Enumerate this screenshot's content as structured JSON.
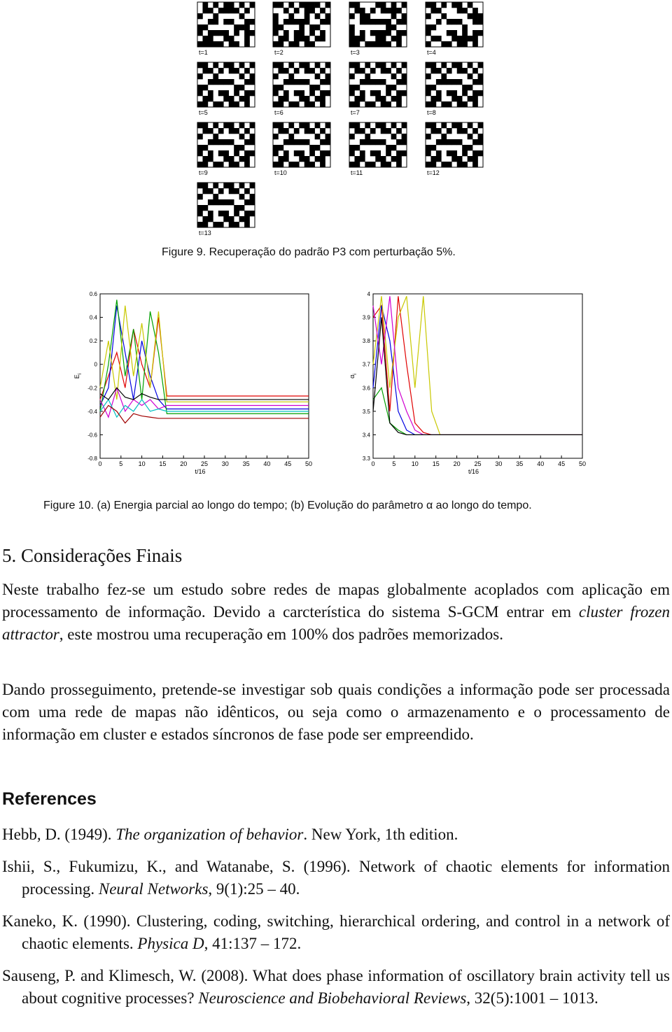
{
  "figure9": {
    "panels": [
      "t=1",
      "t=2",
      "t=3",
      "t=4",
      "t=5",
      "t=6",
      "t=7",
      "t=8",
      "t=9",
      "t=10",
      "t=11",
      "t=12",
      "t=13"
    ],
    "caption": "Figure 9. Recuperação do padrão P3 com perturbação 5%."
  },
  "chart_data": [
    {
      "type": "line",
      "xlabel": "t/16",
      "ylabel": "E",
      "ylabel_sub": "i",
      "x": [
        0,
        2,
        4,
        6,
        8,
        10,
        12,
        14,
        16,
        50
      ],
      "xlim": [
        0,
        50
      ],
      "xticks": [
        0,
        5,
        10,
        15,
        20,
        25,
        30,
        35,
        40,
        45,
        50
      ],
      "ylim": [
        -0.8,
        0.6
      ],
      "yticks": [
        0.6,
        0.4,
        0.2,
        0,
        -0.2,
        -0.4,
        -0.6,
        -0.8
      ],
      "series": [
        {
          "color": "#e00000",
          "values": [
            -0.3,
            -0.1,
            0.1,
            -0.2,
            0.3,
            0.0,
            -0.2,
            0.4,
            -0.27,
            -0.27
          ]
        },
        {
          "color": "#0000e0",
          "values": [
            -0.35,
            -0.2,
            0.5,
            0.1,
            -0.3,
            0.2,
            -0.1,
            -0.3,
            -0.38,
            -0.38
          ]
        },
        {
          "color": "#00a000",
          "values": [
            -0.4,
            0.0,
            0.55,
            -0.1,
            0.3,
            -0.3,
            0.45,
            0.1,
            -0.42,
            -0.42
          ]
        },
        {
          "color": "#c8c800",
          "values": [
            -0.2,
            0.2,
            -0.3,
            0.5,
            -0.1,
            0.35,
            -0.2,
            0.45,
            -0.32,
            -0.32
          ]
        },
        {
          "color": "#d000d0",
          "values": [
            -0.3,
            -0.45,
            -0.2,
            -0.4,
            -0.3,
            -0.35,
            -0.3,
            -0.38,
            -0.35,
            -0.35
          ]
        },
        {
          "color": "#00c0c0",
          "values": [
            -0.4,
            -0.3,
            -0.45,
            -0.35,
            -0.4,
            -0.3,
            -0.4,
            -0.38,
            -0.4,
            -0.4
          ]
        },
        {
          "color": "#000000",
          "values": [
            -0.25,
            -0.3,
            -0.2,
            -0.28,
            -0.3,
            -0.25,
            -0.28,
            -0.3,
            -0.3,
            -0.3
          ]
        },
        {
          "color": "#a00000",
          "values": [
            -0.45,
            -0.35,
            -0.4,
            -0.5,
            -0.42,
            -0.44,
            -0.45,
            -0.46,
            -0.46,
            -0.46
          ]
        }
      ]
    },
    {
      "type": "line",
      "xlabel": "t/16",
      "ylabel": "α",
      "ylabel_sub": "i",
      "x": [
        0,
        2,
        4,
        6,
        8,
        10,
        12,
        14,
        16,
        50
      ],
      "xlim": [
        0,
        50
      ],
      "xticks": [
        0,
        5,
        10,
        15,
        20,
        25,
        30,
        35,
        40,
        45,
        50
      ],
      "ylim": [
        3.3,
        4
      ],
      "yticks": [
        4,
        3.9,
        3.8,
        3.7,
        3.6,
        3.5,
        3.4,
        3.3
      ],
      "series": [
        {
          "color": "#e00000",
          "values": [
            3.9,
            3.95,
            3.5,
            3.99,
            3.7,
            3.45,
            3.41,
            3.4,
            3.4,
            3.4
          ]
        },
        {
          "color": "#0000e0",
          "values": [
            3.6,
            3.95,
            3.8,
            3.5,
            3.42,
            3.4,
            3.4,
            3.4,
            3.4,
            3.4
          ]
        },
        {
          "color": "#c8c800",
          "values": [
            3.7,
            3.99,
            3.6,
            3.9,
            3.99,
            3.6,
            3.99,
            3.5,
            3.4,
            3.4
          ]
        },
        {
          "color": "#00a000",
          "values": [
            3.55,
            3.6,
            3.45,
            3.42,
            3.4,
            3.4,
            3.4,
            3.4,
            3.4,
            3.4
          ]
        },
        {
          "color": "#d000d0",
          "values": [
            3.95,
            3.7,
            3.99,
            3.6,
            3.5,
            3.42,
            3.4,
            3.4,
            3.4,
            3.4
          ]
        },
        {
          "color": "#000000",
          "values": [
            3.5,
            3.9,
            3.45,
            3.41,
            3.4,
            3.4,
            3.4,
            3.4,
            3.4,
            3.4
          ]
        }
      ]
    }
  ],
  "figure10": {
    "caption": "Figure 10. (a) Energia parcial ao longo do tempo; (b) Evolução do parâmetro α ao longo do tempo."
  },
  "section": {
    "heading": "5. Considerações Finais",
    "paragraphs": [
      [
        "Neste trabalho fez-se um estudo sobre redes de mapas globalmente acoplados com aplicação em processamento de informação. Devido a carcterística do sistema S-GCM entrar em ",
        "cluster frozen attractor",
        ", este mostrou uma recuperação em 100% dos padrões memorizados."
      ],
      [
        "Dando prosseguimento, pretende-se investigar sob quais condições a informação pode ser processada com uma rede de mapas não idênticos, ou seja como o armazenamento e o processamento de informação em cluster e estados síncronos de fase pode ser empreendido."
      ]
    ]
  },
  "references": {
    "heading": "References",
    "items": [
      [
        "Hebb, D. (1949). ",
        "The organization of behavior",
        ". New York, 1th edition."
      ],
      [
        "Ishii, S., Fukumizu, K., and Watanabe, S. (1996). Network of chaotic elements for information processing. ",
        "Neural Networks",
        ", 9(1):25 – 40."
      ],
      [
        "Kaneko, K. (1990). Clustering, coding, switching, hierarchical ordering, and control in a network of chaotic elements. ",
        "Physica D",
        ", 41:137 – 172."
      ],
      [
        "Sauseng, P. and Klimesch, W. (2008). What does phase information of oscillatory brain activity tell us about cognitive processes? ",
        "Neuroscience and Biobehavioral Reviews",
        ", 32(5):1001 – 1013."
      ]
    ]
  }
}
